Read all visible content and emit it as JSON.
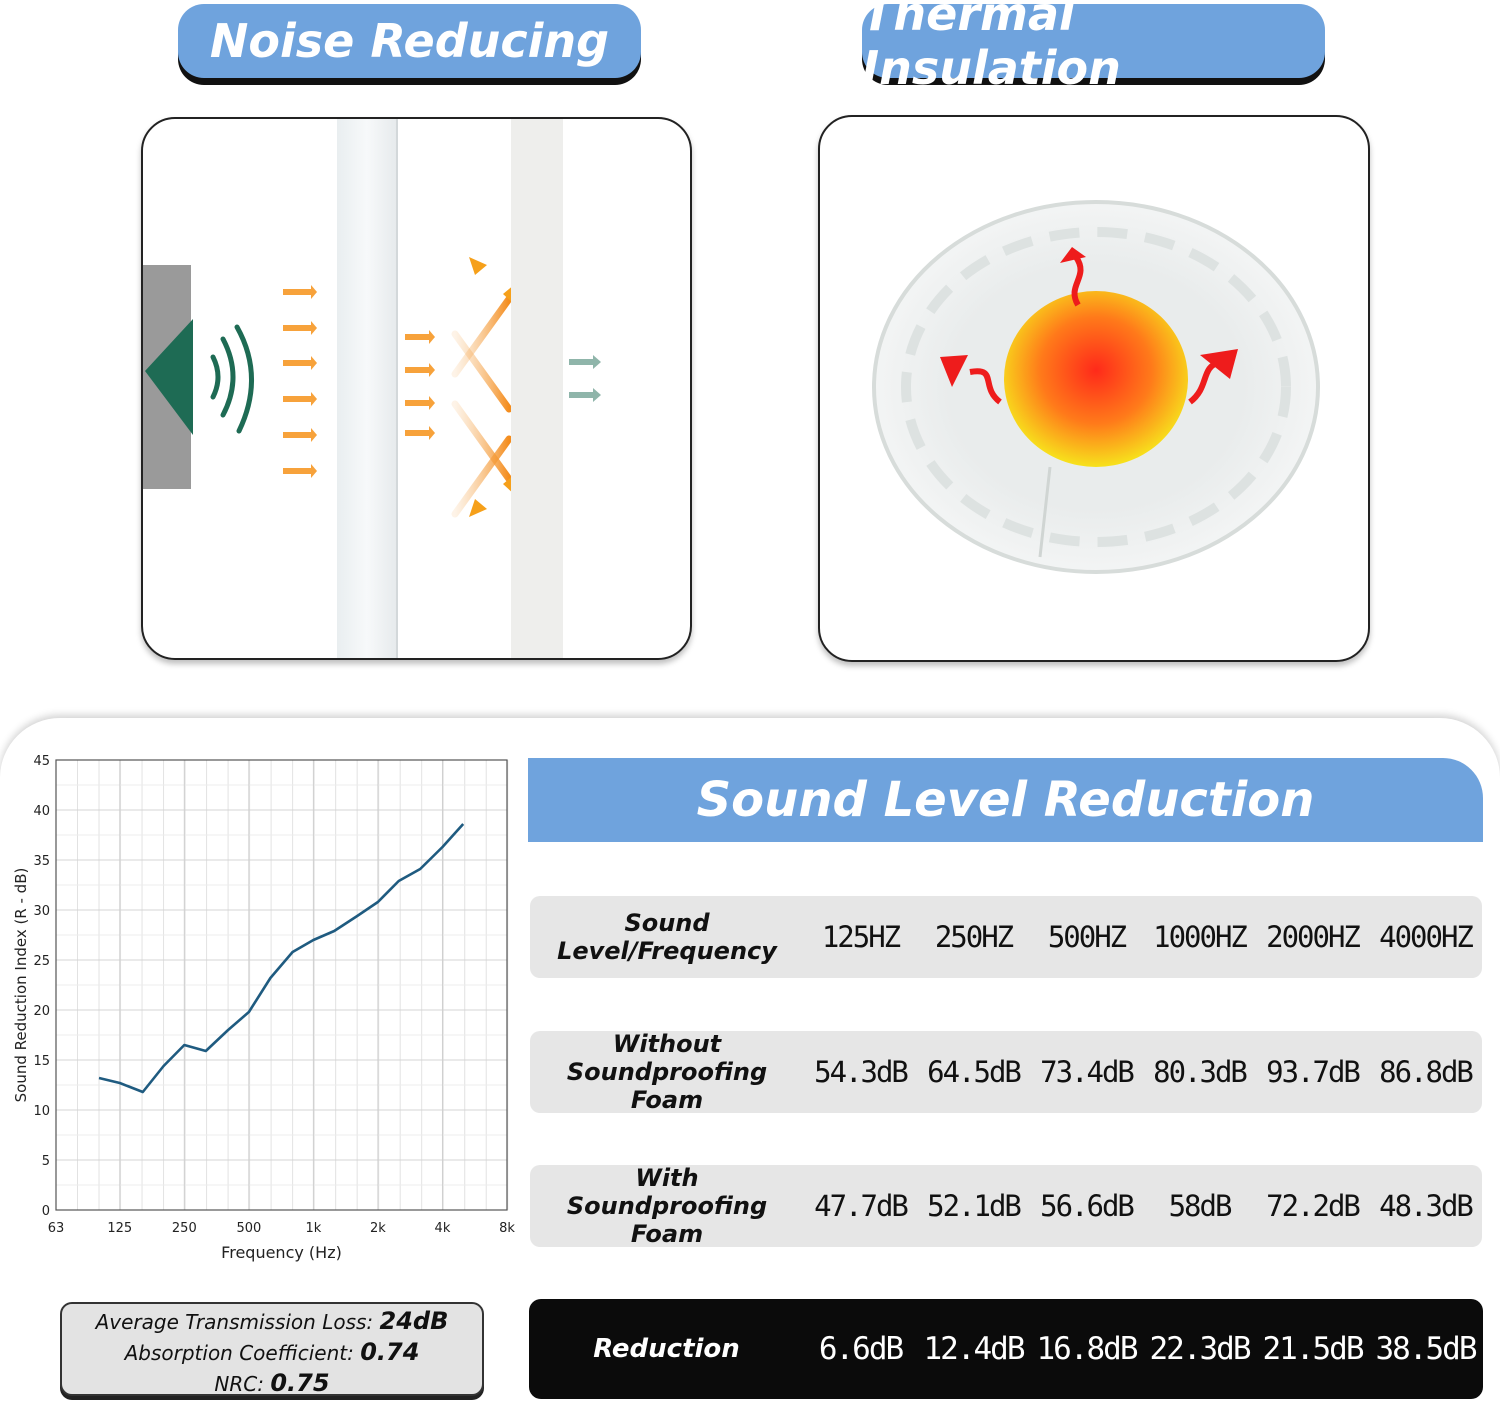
{
  "headers": {
    "noise": "Noise Reducing",
    "thermal": "Thermal Insulation"
  },
  "colors": {
    "accent_blue": "#6fa3dd",
    "line_color": "#1f5b80",
    "speaker_green": "#1e6b54",
    "arrow_orange": "#f7a23b"
  },
  "icons": [
    "speaker-icon",
    "sound-wave-icon",
    "reflected-arrow-icon",
    "heat-arrow-icon"
  ],
  "table": {
    "title": "Sound Level Reduction",
    "header_label": "Sound Level/Frequency",
    "frequencies": [
      "125HZ",
      "250HZ",
      "500HZ",
      "1000HZ",
      "2000HZ",
      "4000HZ"
    ],
    "rows": [
      {
        "label_line1": "Without",
        "label_line2": "Soundproofing Foam",
        "values": [
          "54.3dB",
          "64.5dB",
          "73.4dB",
          "80.3dB",
          "93.7dB",
          "86.8dB"
        ]
      },
      {
        "label_line1": "With",
        "label_line2": "Soundproofing Foam",
        "values": [
          "47.7dB",
          "52.1dB",
          "56.6dB",
          "58dB",
          "72.2dB",
          "48.3dB"
        ]
      }
    ],
    "reduction": {
      "label": "Reduction",
      "values": [
        "6.6dB",
        "12.4dB",
        "16.8dB",
        "22.3dB",
        "21.5dB",
        "38.5dB"
      ]
    }
  },
  "stats": {
    "atl_label": "Average Transmission Loss: ",
    "atl_value": "24dB",
    "ac_label": "Absorption Coefficient: ",
    "ac_value": "0.74",
    "nrc_label": "NRC: ",
    "nrc_value": "0.75"
  },
  "chart_data": {
    "type": "line",
    "title": "",
    "xlabel": "Frequency (Hz)",
    "ylabel": "Sound Reduction Index (R - dB)",
    "x_scale": "log",
    "xlim": [
      63,
      8000
    ],
    "ylim": [
      0,
      45
    ],
    "x_ticks": [
      63,
      125,
      250,
      500,
      1000,
      2000,
      4000,
      8000
    ],
    "x_tick_labels": [
      "63",
      "125",
      "250",
      "500",
      "1k",
      "2k",
      "4k",
      "8k"
    ],
    "y_ticks": [
      0,
      5,
      10,
      15,
      20,
      25,
      30,
      35,
      40,
      45
    ],
    "y_tick_labels": [
      "0",
      "5",
      "10",
      "15",
      "20",
      "25",
      "30",
      "35",
      "40",
      "45"
    ],
    "grid": true,
    "series": [
      {
        "x": [
          100,
          125,
          160,
          200,
          250,
          315,
          400,
          500,
          630,
          800,
          1000,
          1250,
          1600,
          2000,
          2500,
          3150,
          4000,
          5000
        ],
        "y": [
          13.2,
          12.7,
          11.8,
          14.4,
          16.5,
          15.9,
          18.0,
          19.8,
          23.2,
          25.8,
          27.0,
          27.9,
          29.4,
          30.8,
          32.9,
          34.1,
          36.3,
          38.6
        ]
      }
    ]
  }
}
